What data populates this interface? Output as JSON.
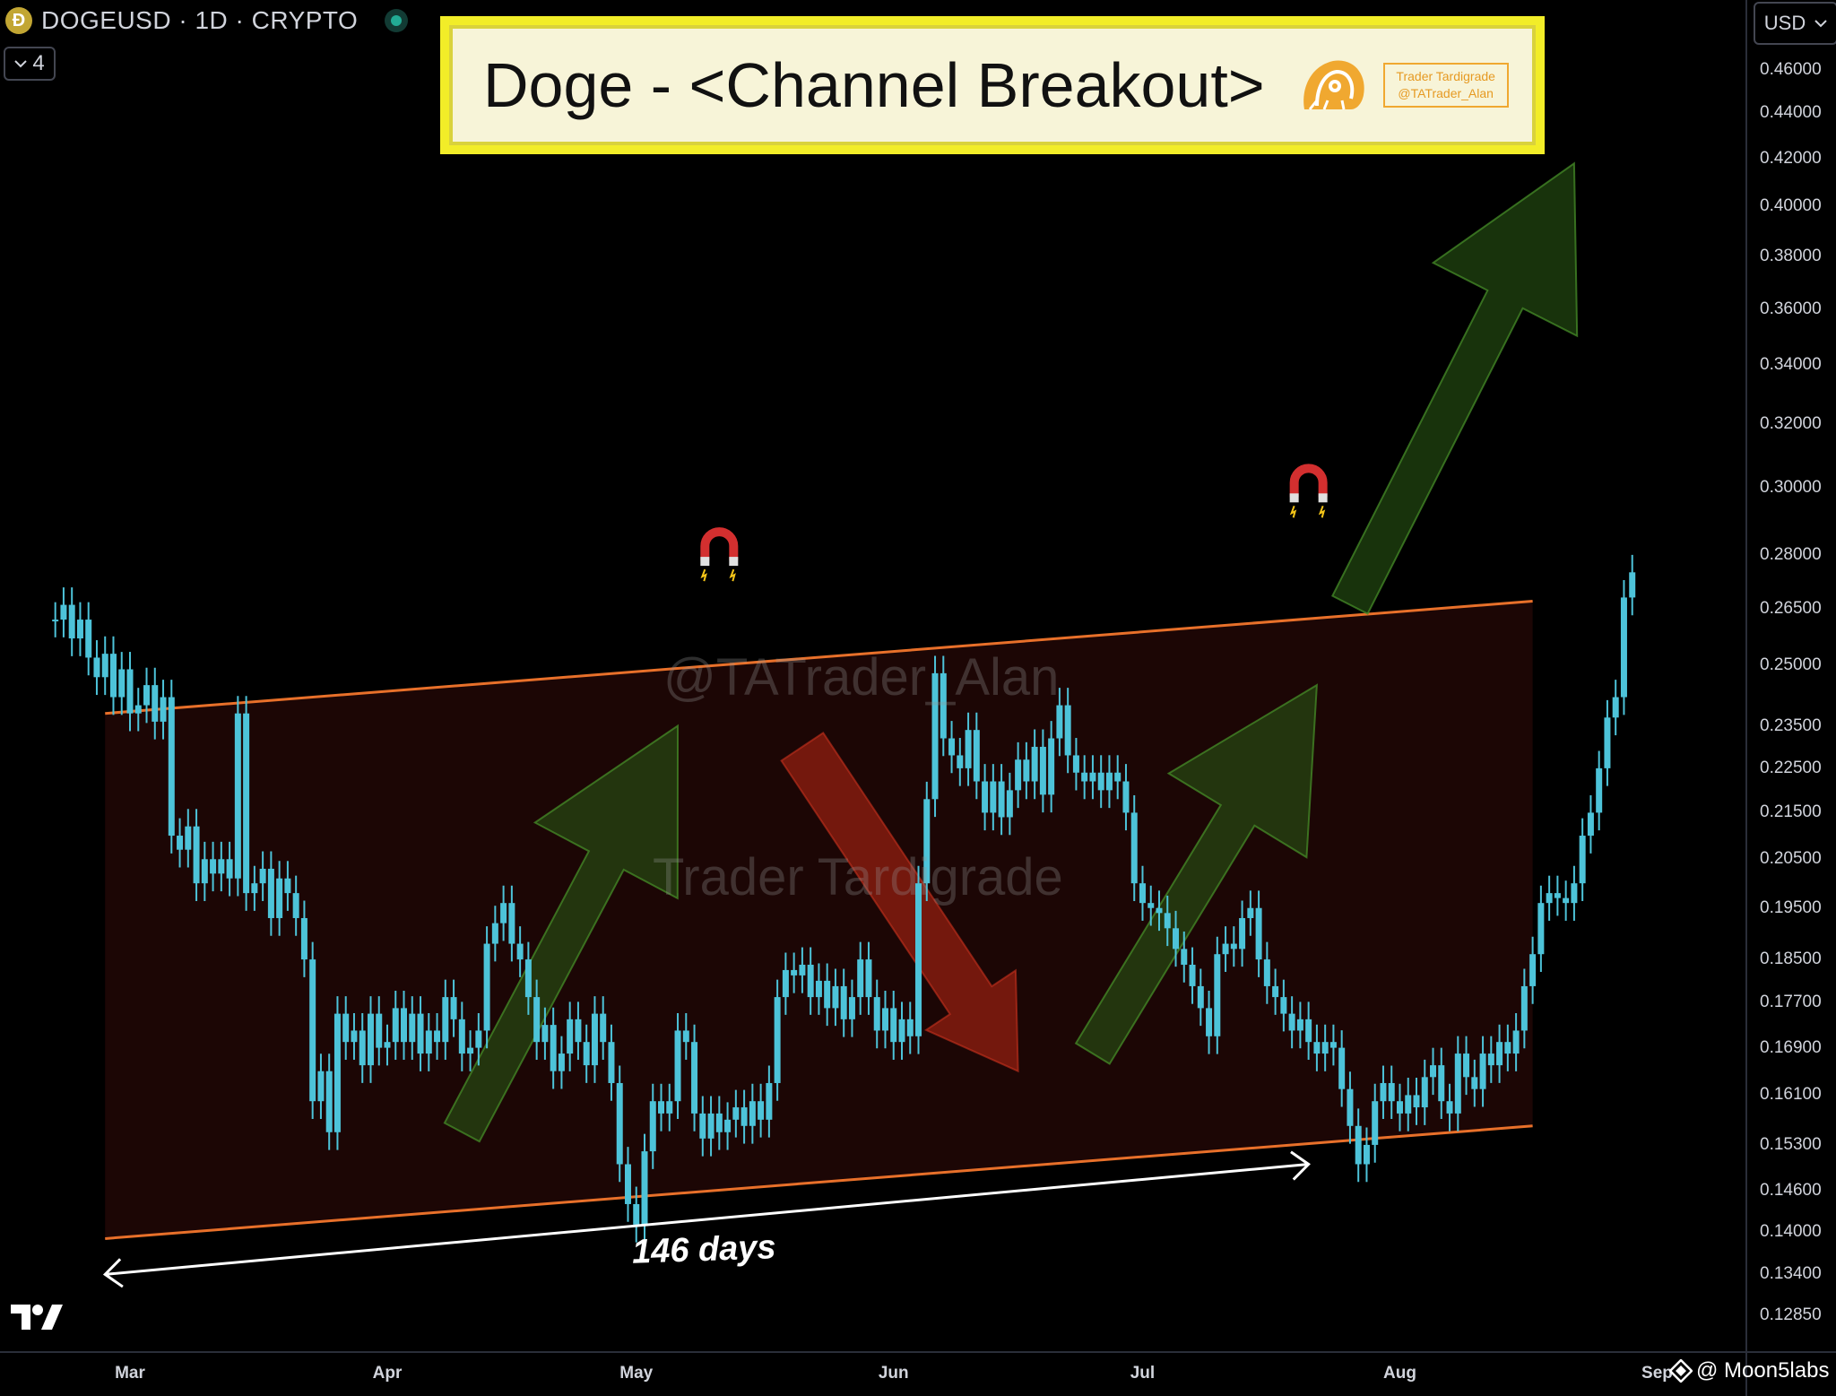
{
  "header": {
    "coin_glyph": "Ð",
    "symbol": "DOGEUSD · 1D · CRYPTO",
    "indicators_count": "4",
    "currency": "USD"
  },
  "banner": {
    "title": "Doge - <Channel Breakout>",
    "brand_line1": "Trader Tardigrade",
    "brand_line2": "@TATrader_Alan"
  },
  "watermarks": {
    "handle": "@TATrader_Alan",
    "name": "Trader Tardigrade"
  },
  "annotation": {
    "duration_label": "146 days"
  },
  "footer": {
    "credit": "@ Moon5labs"
  },
  "colors": {
    "candle": "#4dc3d9",
    "channel_line": "#e8702a",
    "channel_fill": "rgba(110,25,20,0.25)",
    "up_arrow": "rgba(40,85,20,0.6)",
    "down_arrow": "rgba(190,40,20,0.55)",
    "banner_bg": "#f2ed28"
  },
  "chart_data": {
    "type": "candlestick",
    "symbol": "DOGEUSD",
    "timeframe": "1D",
    "y_scale": "log",
    "y_axis_ticks": [
      0.46,
      0.44,
      0.42,
      0.4,
      0.38,
      0.36,
      0.34,
      0.32,
      0.3,
      0.28,
      0.265,
      0.25,
      0.235,
      0.225,
      0.215,
      0.205,
      0.195,
      0.185,
      0.177,
      0.169,
      0.161,
      0.153,
      0.146,
      0.14,
      0.134,
      0.1285
    ],
    "y_axis_tick_labels": [
      "0.46000",
      "0.44000",
      "0.42000",
      "0.40000",
      "0.38000",
      "0.36000",
      "0.34000",
      "0.32000",
      "0.30000",
      "0.28000",
      "0.26500",
      "0.25000",
      "0.23500",
      "0.22500",
      "0.21500",
      "0.20500",
      "0.19500",
      "0.18500",
      "0.17700",
      "0.16900",
      "0.16100",
      "0.15300",
      "0.14600",
      "0.14000",
      "0.13400",
      "0.12850"
    ],
    "x_axis_labels": [
      "Mar",
      "Apr",
      "May",
      "Jun",
      "Jul",
      "Aug",
      "Sep"
    ],
    "x_axis_ticks": [
      "2025-03-01",
      "2025-04-01",
      "2025-05-01",
      "2025-06-01",
      "2025-07-01",
      "2025-08-01",
      "2025-09-01"
    ],
    "closes_start": "2025-02-20",
    "closes": [
      0.262,
      0.266,
      0.257,
      0.262,
      0.252,
      0.247,
      0.253,
      0.242,
      0.249,
      0.238,
      0.24,
      0.245,
      0.236,
      0.242,
      0.21,
      0.207,
      0.212,
      0.2,
      0.205,
      0.202,
      0.205,
      0.201,
      0.238,
      0.198,
      0.2,
      0.203,
      0.193,
      0.201,
      0.198,
      0.193,
      0.185,
      0.16,
      0.165,
      0.155,
      0.175,
      0.17,
      0.172,
      0.166,
      0.175,
      0.169,
      0.17,
      0.176,
      0.17,
      0.175,
      0.168,
      0.172,
      0.17,
      0.178,
      0.174,
      0.168,
      0.169,
      0.172,
      0.188,
      0.192,
      0.196,
      0.188,
      0.185,
      0.178,
      0.17,
      0.173,
      0.165,
      0.168,
      0.174,
      0.17,
      0.166,
      0.175,
      0.17,
      0.163,
      0.15,
      0.144,
      0.141,
      0.152,
      0.16,
      0.158,
      0.16,
      0.172,
      0.17,
      0.158,
      0.154,
      0.158,
      0.155,
      0.157,
      0.159,
      0.156,
      0.16,
      0.157,
      0.163,
      0.178,
      0.183,
      0.182,
      0.184,
      0.178,
      0.181,
      0.176,
      0.18,
      0.174,
      0.178,
      0.185,
      0.178,
      0.172,
      0.176,
      0.17,
      0.174,
      0.171,
      0.2,
      0.218,
      0.248,
      0.232,
      0.228,
      0.225,
      0.234,
      0.222,
      0.215,
      0.222,
      0.214,
      0.22,
      0.227,
      0.222,
      0.23,
      0.219,
      0.232,
      0.24,
      0.228,
      0.224,
      0.222,
      0.224,
      0.22,
      0.224,
      0.222,
      0.215,
      0.2,
      0.196,
      0.195,
      0.194,
      0.191,
      0.187,
      0.184,
      0.18,
      0.176,
      0.171,
      0.186,
      0.188,
      0.187,
      0.193,
      0.195,
      0.185,
      0.18,
      0.178,
      0.175,
      0.172,
      0.174,
      0.17,
      0.168,
      0.17,
      0.169,
      0.162,
      0.156,
      0.15,
      0.153,
      0.16,
      0.163,
      0.16,
      0.158,
      0.161,
      0.159,
      0.164,
      0.166,
      0.16,
      0.158,
      0.168,
      0.164,
      0.162,
      0.168,
      0.166,
      0.17,
      0.168,
      0.172,
      0.18,
      0.186,
      0.196,
      0.198,
      0.197,
      0.196,
      0.2,
      0.21,
      0.215,
      0.225,
      0.237,
      0.242,
      0.268,
      0.275
    ],
    "channel": {
      "upper": [
        {
          "date": "2025-02-26",
          "price": 0.238
        },
        {
          "date": "2025-08-17",
          "price": 0.267
        }
      ],
      "lower": [
        {
          "date": "2025-02-26",
          "price": 0.139
        },
        {
          "date": "2025-08-17",
          "price": 0.156
        }
      ]
    },
    "measure": {
      "label": "146 days",
      "from": {
        "date": "2025-02-26",
        "price": 0.134
      },
      "to": {
        "date": "2025-07-21",
        "price": 0.15
      }
    },
    "markers": [
      {
        "type": "magnet",
        "date": "2025-05-11",
        "price": 0.283
      },
      {
        "type": "magnet",
        "date": "2025-07-21",
        "price": 0.302
      }
    ],
    "projection_arrows": [
      {
        "direction": "up",
        "from": {
          "date": "2025-04-10",
          "price": 0.155
        },
        "to": {
          "date": "2025-05-06",
          "price": 0.235
        }
      },
      {
        "direction": "down",
        "from": {
          "date": "2025-05-21",
          "price": 0.23
        },
        "to": {
          "date": "2025-06-16",
          "price": 0.165
        }
      },
      {
        "direction": "up",
        "from": {
          "date": "2025-06-25",
          "price": 0.168
        },
        "to": {
          "date": "2025-07-22",
          "price": 0.245
        }
      },
      {
        "direction": "up",
        "from": {
          "date": "2025-07-26",
          "price": 0.266
        },
        "to": {
          "date": "2025-08-22",
          "price": 0.418
        }
      }
    ]
  }
}
